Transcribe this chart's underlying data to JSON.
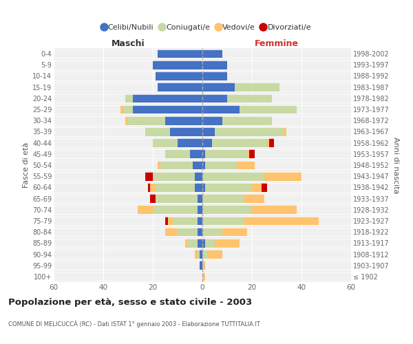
{
  "age_groups": [
    "100+",
    "95-99",
    "90-94",
    "85-89",
    "80-84",
    "75-79",
    "70-74",
    "65-69",
    "60-64",
    "55-59",
    "50-54",
    "45-49",
    "40-44",
    "35-39",
    "30-34",
    "25-29",
    "20-24",
    "15-19",
    "10-14",
    "5-9",
    "0-4"
  ],
  "birth_years": [
    "≤ 1902",
    "1903-1907",
    "1908-1912",
    "1913-1917",
    "1918-1922",
    "1923-1927",
    "1928-1932",
    "1933-1937",
    "1938-1942",
    "1943-1947",
    "1948-1952",
    "1953-1957",
    "1958-1962",
    "1963-1967",
    "1968-1972",
    "1973-1977",
    "1978-1982",
    "1983-1987",
    "1988-1992",
    "1993-1997",
    "1998-2002"
  ],
  "maschi": {
    "celibi": [
      0,
      1,
      1,
      2,
      2,
      2,
      2,
      2,
      3,
      3,
      4,
      5,
      10,
      13,
      15,
      28,
      28,
      18,
      19,
      20,
      18
    ],
    "coniugati": [
      0,
      0,
      1,
      4,
      8,
      10,
      18,
      17,
      16,
      17,
      13,
      10,
      10,
      10,
      15,
      4,
      3,
      0,
      0,
      0,
      0
    ],
    "vedovi": [
      0,
      0,
      1,
      1,
      5,
      2,
      6,
      0,
      2,
      0,
      1,
      0,
      0,
      0,
      1,
      1,
      0,
      0,
      0,
      0,
      0
    ],
    "divorziati": [
      0,
      0,
      0,
      0,
      0,
      1,
      0,
      2,
      1,
      3,
      0,
      0,
      0,
      0,
      0,
      0,
      0,
      0,
      0,
      0,
      0
    ]
  },
  "femmine": {
    "celibi": [
      0,
      0,
      0,
      1,
      0,
      0,
      0,
      0,
      1,
      0,
      1,
      1,
      4,
      5,
      8,
      15,
      10,
      13,
      10,
      10,
      8
    ],
    "coniugati": [
      0,
      0,
      2,
      4,
      8,
      17,
      20,
      17,
      19,
      25,
      13,
      17,
      22,
      28,
      20,
      23,
      18,
      18,
      0,
      0,
      0
    ],
    "vedovi": [
      1,
      1,
      6,
      10,
      10,
      30,
      18,
      8,
      4,
      15,
      7,
      1,
      1,
      1,
      0,
      0,
      0,
      0,
      0,
      0,
      0
    ],
    "divorziati": [
      0,
      0,
      0,
      0,
      0,
      0,
      0,
      0,
      2,
      0,
      0,
      2,
      2,
      0,
      0,
      0,
      0,
      0,
      0,
      0,
      0
    ]
  },
  "colors": {
    "celibi": "#4472c4",
    "coniugati": "#c8d9a4",
    "vedovi": "#ffc36d",
    "divorziati": "#cc0000"
  },
  "xlim": 60,
  "title": "Popolazione per età, sesso e stato civile - 2003",
  "subtitle": "COMUNE DI MELICUCCÀ (RC) - Dati ISTAT 1° gennaio 2003 - Elaborazione TUTTITALIA.IT",
  "legend_labels": [
    "Celibi/Nubili",
    "Coniugati/e",
    "Vedovi/e",
    "Divorziati/e"
  ],
  "ylabel_left": "Fasce di età",
  "ylabel_right": "Anni di nascita",
  "xlabel_left": "Maschi",
  "xlabel_right": "Femmine",
  "bg_color": "#f0f0f0",
  "grid_color": "#ffffff"
}
